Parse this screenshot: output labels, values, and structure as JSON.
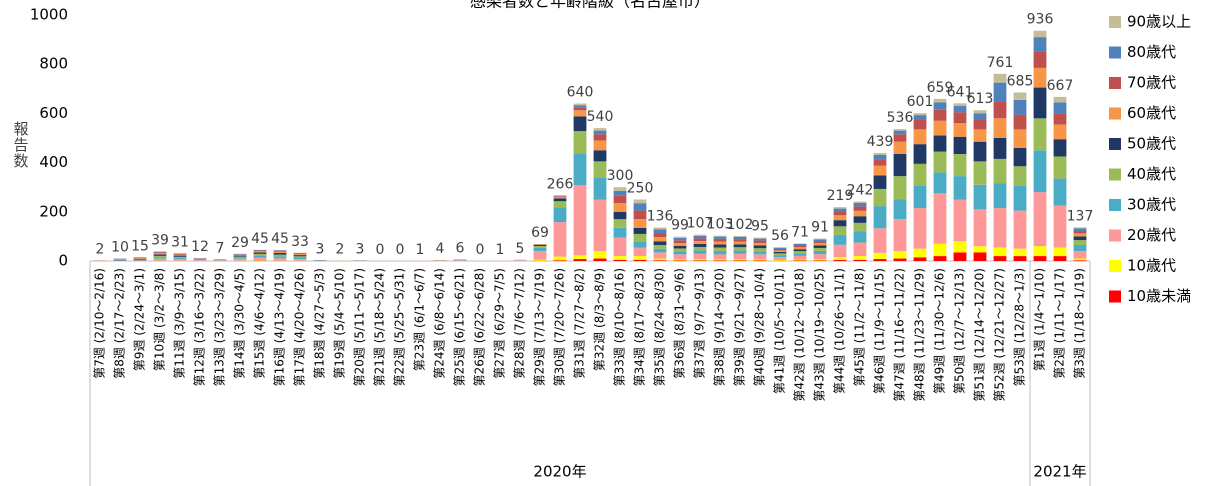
{
  "chart_data": {
    "type": "stacked_bar",
    "title": "感染者数と年齢階級（名古屋市）",
    "ylabel": "報告数",
    "categories": [
      "第7週 (2/10～2/16)",
      "第8週 (2/17～2/23)",
      "第9週 (2/24～3/1)",
      "第10週 (3/2～3/8)",
      "第11週 (3/9～3/15)",
      "第12週 (3/16～3/22)",
      "第13週 (3/23～3/29)",
      "第14週 (3/30～4/5)",
      "第15週 (4/6～4/12)",
      "第16週 (4/13～4/19)",
      "第17週 (4/20～4/26)",
      "第18週 (4/27～5/3)",
      "第19週 (5/4～5/10)",
      "第20週 (5/11～5/17)",
      "第21週 (5/18～5/24)",
      "第22週 (5/25～5/31)",
      "第23週 (6/1～6/7)",
      "第24週 (6/8～6/14)",
      "第25週 (6/15～6/21)",
      "第26週 (6/22～6/28)",
      "第27週 (6/29～7/5)",
      "第28週 (7/6～7/12)",
      "第29週 (7/13～7/19)",
      "第30週 (7/20～7/26)",
      "第31週 (7/27～8/2)",
      "第32週 (8/3～8/9)",
      "第33週 (8/10～8/16)",
      "第34週 (8/17～8/23)",
      "第35週 (8/24～8/30)",
      "第36週 (8/31～9/6)",
      "第37週 (9/7～9/13)",
      "第38週 (9/14～9/20)",
      "第39週 (9/21～9/27)",
      "第40週 (9/28～10/4)",
      "第41週 (10/5～10/11)",
      "第42週 (10/12～10/18)",
      "第43週 (10/19～10/25)",
      "第44週 (10/26～11/1)",
      "第45週 (11/2～11/8)",
      "第46週 (11/9～11/15)",
      "第47週 (11/16～11/22)",
      "第48週 (11/23～11/29)",
      "第49週 (11/30～12/6)",
      "第50週 (12/7～12/13)",
      "第51週 (12/14～12/20)",
      "第52週 (12/21～12/27)",
      "第53週 (12/28～1/3)",
      "第1週 (1/4～1/10)",
      "第2週 (1/11～1/17)",
      "第3週 (1/18～1/19)"
    ],
    "groups": [
      {
        "label": "2020年",
        "span": 47
      },
      {
        "label": "2021年",
        "span": 3
      }
    ],
    "totals": [
      2,
      10,
      15,
      39,
      31,
      12,
      7,
      29,
      45,
      45,
      33,
      3,
      2,
      3,
      0,
      0,
      1,
      4,
      6,
      0,
      1,
      5,
      69,
      266,
      640,
      540,
      300,
      250,
      136,
      99,
      107,
      103,
      102,
      95,
      56,
      71,
      91,
      219,
      242,
      439,
      536,
      601,
      659,
      641,
      613,
      761,
      685,
      936,
      667,
      137
    ],
    "series": [
      {
        "name": "10歳未満",
        "color": "#ff0000",
        "values": [
          0,
          0,
          0,
          0,
          0,
          0,
          0,
          0,
          1,
          0,
          0,
          0,
          0,
          0,
          0,
          0,
          0,
          0,
          0,
          0,
          0,
          0,
          1,
          3,
          8,
          10,
          5,
          5,
          3,
          2,
          2,
          2,
          2,
          2,
          1,
          2,
          2,
          4,
          5,
          8,
          10,
          15,
          20,
          35,
          35,
          20,
          20,
          20,
          20,
          3
        ]
      },
      {
        "name": "10歳代",
        "color": "#ffff00",
        "values": [
          0,
          0,
          0,
          1,
          1,
          0,
          0,
          1,
          1,
          1,
          1,
          0,
          0,
          0,
          0,
          0,
          0,
          0,
          0,
          0,
          0,
          0,
          4,
          15,
          15,
          30,
          15,
          15,
          7,
          5,
          5,
          5,
          5,
          5,
          3,
          4,
          6,
          12,
          15,
          25,
          30,
          35,
          50,
          45,
          25,
          35,
          30,
          40,
          35,
          7
        ]
      },
      {
        "name": "20歳代",
        "color": "#ff9999",
        "values": [
          0,
          1,
          2,
          8,
          6,
          3,
          2,
          8,
          12,
          10,
          7,
          1,
          1,
          1,
          0,
          0,
          1,
          2,
          3,
          0,
          1,
          3,
          35,
          140,
          285,
          210,
          75,
          35,
          25,
          20,
          22,
          20,
          22,
          20,
          12,
          15,
          20,
          50,
          55,
          100,
          130,
          165,
          205,
          170,
          150,
          160,
          155,
          220,
          170,
          30
        ]
      },
      {
        "name": "30歳代",
        "color": "#4bacc6",
        "values": [
          0,
          1,
          2,
          6,
          5,
          2,
          1,
          5,
          8,
          8,
          6,
          1,
          0,
          1,
          0,
          0,
          0,
          1,
          1,
          0,
          0,
          1,
          13,
          60,
          130,
          90,
          40,
          25,
          15,
          12,
          14,
          14,
          14,
          13,
          8,
          10,
          13,
          40,
          45,
          90,
          80,
          90,
          85,
          95,
          100,
          100,
          100,
          170,
          110,
          25
        ]
      },
      {
        "name": "40歳代",
        "color": "#9bbb59",
        "values": [
          0,
          1,
          2,
          6,
          5,
          2,
          1,
          4,
          7,
          7,
          5,
          0,
          1,
          0,
          0,
          0,
          0,
          1,
          1,
          0,
          0,
          1,
          8,
          25,
          90,
          65,
          35,
          30,
          15,
          12,
          14,
          14,
          13,
          12,
          7,
          9,
          12,
          35,
          35,
          70,
          95,
          90,
          85,
          90,
          95,
          100,
          80,
          130,
          90,
          20
        ]
      },
      {
        "name": "50歳代",
        "color": "#1f3864",
        "values": [
          0,
          2,
          3,
          6,
          5,
          2,
          1,
          4,
          6,
          7,
          5,
          1,
          0,
          0,
          0,
          0,
          0,
          0,
          1,
          0,
          0,
          0,
          4,
          12,
          60,
          45,
          30,
          25,
          15,
          10,
          12,
          12,
          12,
          11,
          6,
          8,
          10,
          25,
          27,
          55,
          90,
          80,
          65,
          70,
          80,
          85,
          75,
          125,
          70,
          15
        ]
      },
      {
        "name": "60歳代",
        "color": "#f79646",
        "values": [
          1,
          2,
          3,
          5,
          4,
          1,
          1,
          3,
          5,
          5,
          4,
          0,
          0,
          1,
          0,
          0,
          0,
          0,
          0,
          0,
          0,
          0,
          2,
          6,
          25,
          40,
          35,
          35,
          17,
          12,
          12,
          12,
          11,
          10,
          6,
          8,
          10,
          20,
          22,
          40,
          50,
          60,
          60,
          55,
          50,
          80,
          75,
          80,
          60,
          12
        ]
      },
      {
        "name": "70歳代",
        "color": "#c0504d",
        "values": [
          1,
          2,
          2,
          4,
          3,
          1,
          1,
          2,
          3,
          4,
          3,
          0,
          0,
          0,
          0,
          0,
          0,
          0,
          0,
          0,
          0,
          0,
          1,
          3,
          12,
          25,
          30,
          35,
          17,
          11,
          11,
          11,
          10,
          10,
          6,
          7,
          8,
          15,
          18,
          25,
          30,
          40,
          45,
          45,
          40,
          70,
          60,
          65,
          45,
          10
        ]
      },
      {
        "name": "80歳代",
        "color": "#4f81bd",
        "values": [
          0,
          1,
          1,
          2,
          2,
          1,
          0,
          2,
          2,
          2,
          2,
          0,
          0,
          0,
          0,
          0,
          0,
          0,
          0,
          0,
          0,
          0,
          1,
          2,
          8,
          15,
          20,
          30,
          15,
          10,
          10,
          9,
          9,
          8,
          5,
          6,
          7,
          12,
          14,
          18,
          15,
          18,
          30,
          25,
          25,
          75,
          60,
          60,
          45,
          10
        ]
      },
      {
        "name": "90歳以上",
        "color": "#c4bd97",
        "values": [
          0,
          0,
          0,
          1,
          0,
          0,
          0,
          0,
          0,
          1,
          0,
          0,
          0,
          0,
          0,
          0,
          0,
          0,
          0,
          0,
          0,
          0,
          0,
          0,
          7,
          10,
          15,
          15,
          7,
          5,
          5,
          4,
          4,
          4,
          2,
          2,
          3,
          6,
          6,
          8,
          6,
          8,
          14,
          11,
          13,
          36,
          30,
          26,
          22,
          5
        ]
      }
    ],
    "ylim": [
      0,
      1000
    ],
    "yticks": [
      0,
      200,
      400,
      600,
      800,
      1000
    ],
    "grid": false,
    "legend": "right"
  }
}
